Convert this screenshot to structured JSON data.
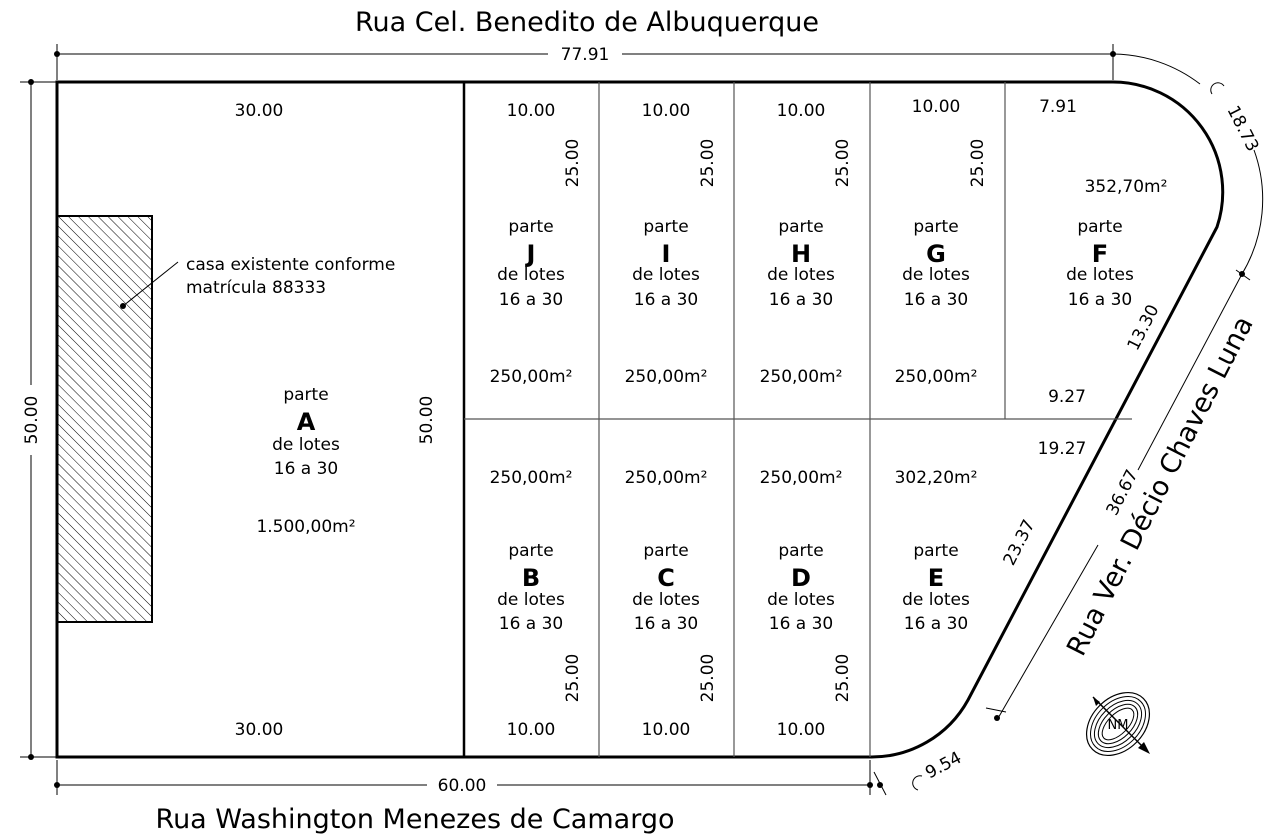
{
  "streets": {
    "top": "Rua Cel. Benedito de Albuquerque",
    "bottom": "Rua Washington Menezes de Camargo",
    "right": "Rua Ver. Décio Chaves Luna"
  },
  "overall_dims": {
    "top": "77.91",
    "bottom": "60.00",
    "left": "50.00",
    "corner_top": "18.73",
    "corner_bottom": "9.54",
    "diagonal": "36.67"
  },
  "lot_a": {
    "parte": "parte",
    "letter": "A",
    "de_lotes": "de lotes",
    "range": "16 a 30",
    "area": "1.500,00m²",
    "top": "30.00",
    "bottom": "30.00",
    "side": "50.00"
  },
  "house_note": {
    "line1": "casa existente conforme",
    "line2": "matrícula 88333"
  },
  "lots": [
    {
      "letter": "J",
      "parte": "parte",
      "de_lotes": "de lotes",
      "range": "16 a 30",
      "area": "250,00m²",
      "front": "10.00",
      "depth": "25.00"
    },
    {
      "letter": "I",
      "parte": "parte",
      "de_lotes": "de lotes",
      "range": "16 a 30",
      "area": "250,00m²",
      "front": "10.00",
      "depth": "25.00"
    },
    {
      "letter": "H",
      "parte": "parte",
      "de_lotes": "de lotes",
      "range": "16 a 30",
      "area": "250,00m²",
      "front": "10.00",
      "depth": "25.00"
    },
    {
      "letter": "G",
      "parte": "parte",
      "de_lotes": "de lotes",
      "range": "16 a 30",
      "area": "250,00m²",
      "front": "10.00",
      "depth": "25.00"
    },
    {
      "letter": "F",
      "parte": "parte",
      "de_lotes": "de lotes",
      "range": "16 a 30",
      "area": "352,70m²",
      "front": "7.91",
      "back": "9.27",
      "side": "13.30"
    },
    {
      "letter": "B",
      "parte": "parte",
      "de_lotes": "de lotes",
      "range": "16 a 30",
      "area": "250,00m²",
      "front": "10.00",
      "depth": "25.00"
    },
    {
      "letter": "C",
      "parte": "parte",
      "de_lotes": "de lotes",
      "range": "16 a 30",
      "area": "250,00m²",
      "front": "10.00",
      "depth": "25.00"
    },
    {
      "letter": "D",
      "parte": "parte",
      "de_lotes": "de lotes",
      "range": "16 a 30",
      "area": "250,00m²",
      "front": "10.00",
      "depth": "25.00"
    },
    {
      "letter": "E",
      "parte": "parte",
      "de_lotes": "de lotes",
      "range": "16 a 30",
      "area": "302,20m²",
      "top": "19.27",
      "side": "23.37"
    }
  ],
  "north": "NM"
}
